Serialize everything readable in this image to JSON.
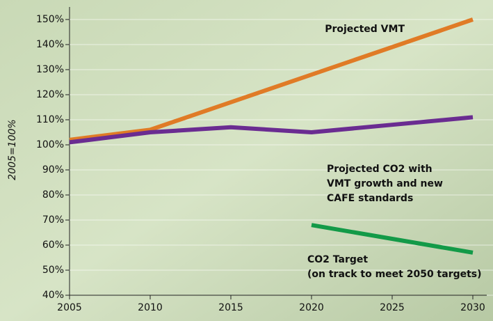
{
  "chart_data": {
    "type": "line",
    "y_axis_label": "2005=100%",
    "x": [
      2005,
      2010,
      2015,
      2020,
      2025,
      2030
    ],
    "xlim": [
      2005,
      2030
    ],
    "xticks": [
      2005,
      2010,
      2015,
      2020,
      2025,
      2030
    ],
    "ylim": [
      40,
      150
    ],
    "yticks": [
      {
        "value": 40,
        "label": "40%"
      },
      {
        "value": 50,
        "label": "50%"
      },
      {
        "value": 60,
        "label": "60%"
      },
      {
        "value": 70,
        "label": "70%"
      },
      {
        "value": 80,
        "label": "80%"
      },
      {
        "value": 90,
        "label": "90%"
      },
      {
        "value": 100,
        "label": "100%"
      },
      {
        "value": 110,
        "label": "110%"
      },
      {
        "value": 120,
        "label": "120%"
      },
      {
        "value": 130,
        "label": "130%"
      },
      {
        "value": 140,
        "label": "140%"
      },
      {
        "value": 150,
        "label": "150%"
      }
    ],
    "grid": true,
    "series": [
      {
        "label_lines": [
          "Projected VMT"
        ],
        "color": "#e07b26",
        "values": [
          102,
          106,
          117,
          128,
          139,
          150
        ]
      },
      {
        "label_lines": [
          "Projected CO2 with",
          "VMT growth and new",
          "CAFE standards"
        ],
        "color": "#6a2c91",
        "values": [
          101,
          105,
          107,
          105,
          108,
          111
        ]
      },
      {
        "label_lines": [
          "CO2 Target",
          "(on track to meet 2050 targets)"
        ],
        "color": "#139a48",
        "values": [
          null,
          null,
          null,
          68,
          62.5,
          57
        ]
      }
    ]
  }
}
